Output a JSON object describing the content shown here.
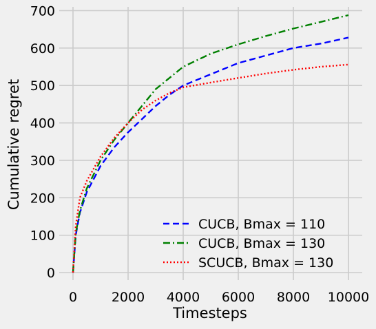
{
  "chart_data": {
    "type": "line",
    "title": "",
    "xlabel": "Timesteps",
    "ylabel": "Cumulative regret",
    "xlim": [
      -500,
      10500
    ],
    "ylim": [
      -20,
      710
    ],
    "xticks": [
      0,
      2000,
      4000,
      6000,
      8000,
      10000
    ],
    "yticks": [
      0,
      100,
      200,
      300,
      400,
      500,
      600,
      700
    ],
    "grid": true,
    "legend_position": "lower-right",
    "series": [
      {
        "name": "CUCB, Bmax = 110",
        "color": "#0000ff",
        "dash": "dashed",
        "x": [
          0,
          100,
          250,
          500,
          1000,
          1500,
          2000,
          2500,
          3000,
          3500,
          4000,
          5000,
          6000,
          7000,
          8000,
          9000,
          10000
        ],
        "y": [
          0,
          100,
          160,
          215,
          285,
          335,
          375,
          410,
          445,
          475,
          500,
          530,
          560,
          580,
          600,
          612,
          628
        ]
      },
      {
        "name": "CUCB, Bmax = 130",
        "color": "#008000",
        "dash": "dashdot",
        "x": [
          0,
          100,
          250,
          500,
          1000,
          1500,
          2000,
          2500,
          3000,
          3500,
          4000,
          5000,
          6000,
          7000,
          8000,
          9000,
          10000
        ],
        "y": [
          0,
          105,
          165,
          225,
          300,
          355,
          400,
          445,
          490,
          520,
          550,
          585,
          610,
          632,
          652,
          670,
          688
        ]
      },
      {
        "name": "SCUCB, Bmax = 130",
        "color": "#ff0000",
        "dash": "dotted",
        "x": [
          0,
          100,
          250,
          500,
          1000,
          1500,
          2000,
          2500,
          3000,
          3500,
          4000,
          5000,
          6000,
          7000,
          8000,
          9000,
          10000
        ],
        "y": [
          0,
          125,
          200,
          245,
          310,
          360,
          400,
          435,
          460,
          480,
          495,
          508,
          520,
          532,
          542,
          550,
          556
        ]
      }
    ]
  }
}
